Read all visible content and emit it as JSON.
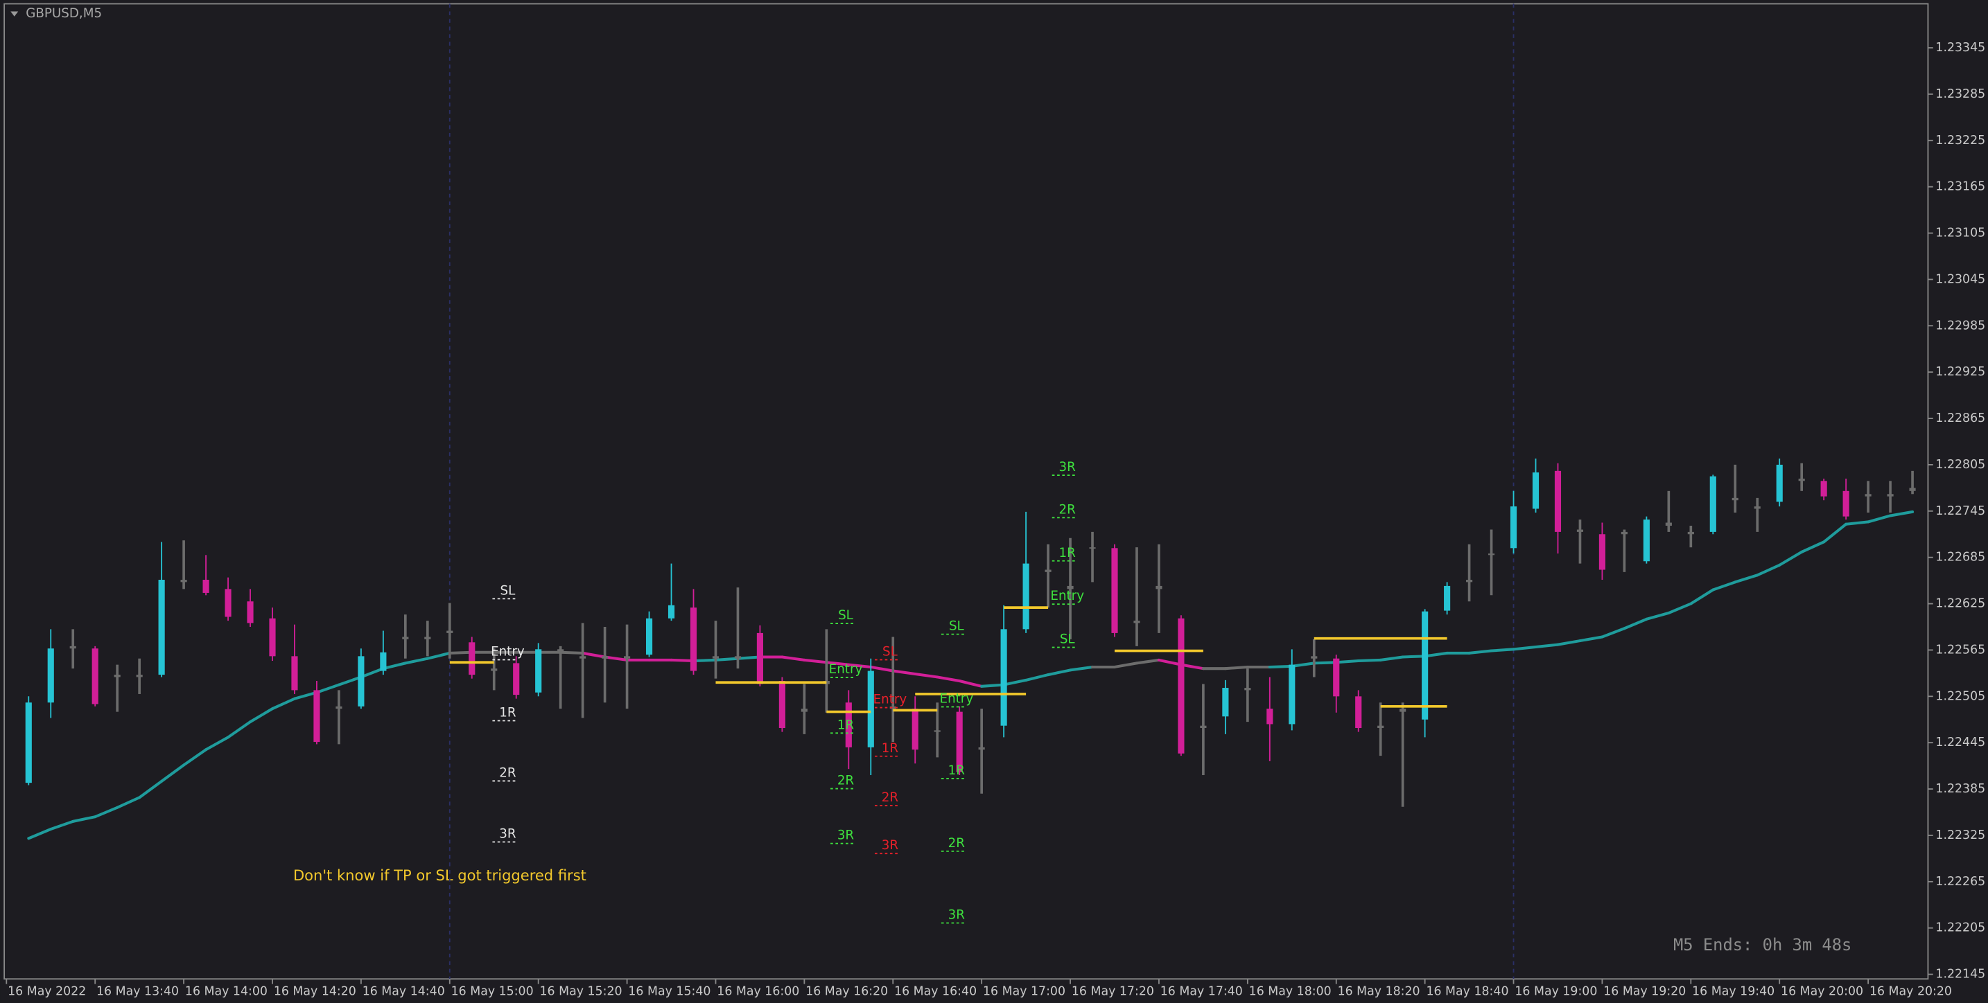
{
  "header": {
    "symbol": "GBPUSD,M5"
  },
  "chart_data": {
    "type": "candlestick",
    "open": [
      1.22393,
      1.22497,
      1.22567,
      1.22567,
      1.2253,
      1.2253,
      1.22533,
      1.22653,
      1.22656,
      1.22644,
      1.22628,
      1.22606,
      1.22557,
      1.22513,
      1.22489,
      1.22492,
      1.22538,
      1.22579,
      1.22579,
      1.22587,
      1.22575,
      1.22538,
      1.22548,
      1.2251,
      1.22562,
      1.22554,
      1.22554,
      1.22554,
      1.22559,
      1.22606,
      1.2262,
      1.22554,
      1.22554,
      1.22587,
      1.22525,
      1.22485,
      1.22521,
      1.22497,
      1.22439,
      1.22489,
      1.22489,
      1.22459,
      1.22485,
      1.22436,
      1.22467,
      1.22592,
      1.22669,
      1.22648,
      1.22698,
      1.22697,
      1.22603,
      1.22644,
      1.22606,
      1.22464,
      1.22479,
      1.22513,
      1.22489,
      1.22469,
      1.22554,
      1.22554,
      1.22505,
      1.22464,
      1.22485,
      1.22475,
      1.22616,
      1.22653,
      1.22688,
      1.22697,
      1.22748,
      1.22797,
      1.22721,
      1.22715,
      1.22715,
      1.2268,
      1.22726,
      1.22715,
      1.22718,
      1.22759,
      1.22751,
      1.22757,
      1.22784,
      1.22784,
      1.22771,
      1.22764,
      1.22764,
      1.22771
    ],
    "high": [
      1.22505,
      1.22592,
      1.22592,
      1.2257,
      1.22546,
      1.22554,
      1.22705,
      1.22707,
      1.22688,
      1.22659,
      1.22644,
      1.2262,
      1.22598,
      1.22525,
      1.22513,
      1.22567,
      1.2259,
      1.22611,
      1.22603,
      1.22626,
      1.22582,
      1.22567,
      1.22557,
      1.22574,
      1.2257,
      1.226,
      1.22595,
      1.22598,
      1.22615,
      1.22677,
      1.22644,
      1.22603,
      1.22646,
      1.22597,
      1.2253,
      1.22521,
      1.22592,
      1.22513,
      1.22554,
      1.22582,
      1.22505,
      1.22497,
      1.22492,
      1.22489,
      1.22623,
      1.22744,
      1.22702,
      1.2271,
      1.22718,
      1.22702,
      1.22698,
      1.22702,
      1.2261,
      1.22521,
      1.22526,
      1.22541,
      1.2253,
      1.22566,
      1.22579,
      1.22559,
      1.22513,
      1.22497,
      1.22497,
      1.22618,
      1.22653,
      1.22702,
      1.22721,
      1.22771,
      1.22813,
      1.22807,
      1.22734,
      1.2273,
      1.22721,
      1.22738,
      1.22771,
      1.22726,
      1.22792,
      1.22805,
      1.22762,
      1.22813,
      1.22807,
      1.22787,
      1.22787,
      1.22784,
      1.22784,
      1.22797
    ],
    "low": [
      1.2239,
      1.22477,
      1.22541,
      1.22492,
      1.22485,
      1.22508,
      1.2253,
      1.22644,
      1.22636,
      1.22603,
      1.22595,
      1.22551,
      1.22508,
      1.22443,
      1.22443,
      1.22489,
      1.22533,
      1.22554,
      1.22557,
      1.22554,
      1.22528,
      1.22513,
      1.22502,
      1.22505,
      1.22489,
      1.22477,
      1.22497,
      1.22489,
      1.22556,
      1.22603,
      1.22533,
      1.22528,
      1.22541,
      1.22518,
      1.22459,
      1.22456,
      1.22484,
      1.22411,
      1.22403,
      1.22446,
      1.22418,
      1.22426,
      1.22403,
      1.22379,
      1.22452,
      1.22587,
      1.2262,
      1.22579,
      1.22653,
      1.22582,
      1.2257,
      1.22587,
      1.22428,
      1.22403,
      1.22456,
      1.22472,
      1.22421,
      1.22461,
      1.2253,
      1.22484,
      1.22459,
      1.22428,
      1.22362,
      1.22452,
      1.22611,
      1.22628,
      1.22636,
      1.2269,
      1.22743,
      1.2269,
      1.22677,
      1.22656,
      1.22666,
      1.22677,
      1.22718,
      1.22698,
      1.22715,
      1.22743,
      1.22718,
      1.22751,
      1.22771,
      1.22759,
      1.22734,
      1.22743,
      1.22743,
      1.22767
    ],
    "close": [
      1.22497,
      1.22567,
      1.2257,
      1.22495,
      1.22533,
      1.22533,
      1.22656,
      1.22656,
      1.22639,
      1.22608,
      1.226,
      1.22557,
      1.22513,
      1.22446,
      1.22492,
      1.22557,
      1.22562,
      1.22582,
      1.22582,
      1.2259,
      1.22533,
      1.22541,
      1.22507,
      1.22566,
      1.22566,
      1.22557,
      1.22557,
      1.22557,
      1.22606,
      1.22623,
      1.22538,
      1.22557,
      1.22557,
      1.22521,
      1.22464,
      1.22489,
      1.22525,
      1.22439,
      1.22538,
      1.22492,
      1.22436,
      1.22461,
      1.22407,
      1.22439,
      1.22592,
      1.22677,
      1.22666,
      1.22644,
      1.22697,
      1.22587,
      1.226,
      1.22648,
      1.22431,
      1.22467,
      1.22516,
      1.22516,
      1.22469,
      1.22546,
      1.22557,
      1.22505,
      1.22464,
      1.22467,
      1.22489,
      1.22615,
      1.22648,
      1.22656,
      1.2269,
      1.22751,
      1.22795,
      1.22718,
      1.22718,
      1.22669,
      1.22718,
      1.22734,
      1.2273,
      1.22718,
      1.2279,
      1.22762,
      1.22748,
      1.22805,
      1.22787,
      1.22764,
      1.22738,
      1.22767,
      1.22767,
      1.22775
    ],
    "kind": [
      "up",
      "up",
      "neutral",
      "down",
      "neutral",
      "neutral",
      "up",
      "neutral",
      "down",
      "down",
      "down",
      "down",
      "down",
      "down",
      "neutral",
      "up",
      "up",
      "neutral",
      "neutral",
      "neutral",
      "down",
      "neutral",
      "down",
      "up",
      "neutral",
      "neutral",
      "neutral",
      "neutral",
      "up",
      "up",
      "down",
      "neutral",
      "neutral",
      "down",
      "down",
      "neutral",
      "neutral",
      "down",
      "up",
      "neutral",
      "down",
      "neutral",
      "down",
      "neutral",
      "up",
      "up",
      "neutral",
      "neutral",
      "neutral",
      "down",
      "neutral",
      "neutral",
      "down",
      "neutral",
      "up",
      "neutral",
      "down",
      "up",
      "neutral",
      "down",
      "down",
      "neutral",
      "neutral",
      "up",
      "up",
      "neutral",
      "neutral",
      "up",
      "up",
      "down",
      "neutral",
      "down",
      "neutral",
      "up",
      "neutral",
      "neutral",
      "up",
      "neutral",
      "neutral",
      "up",
      "neutral",
      "down",
      "down",
      "neutral",
      "neutral",
      "neutral"
    ],
    "colors": {
      "up": "#26c4d4",
      "down": "#d21f98",
      "neutral": "#6c6c6c"
    },
    "ma": {
      "values": [
        1.22321,
        1.22333,
        1.22343,
        1.22349,
        1.22361,
        1.22374,
        1.22395,
        1.22416,
        1.22436,
        1.22452,
        1.22472,
        1.22489,
        1.22502,
        1.2251,
        1.2252,
        1.2253,
        1.22541,
        1.22548,
        1.22554,
        1.22561,
        1.22562,
        1.22562,
        1.22562,
        1.22562,
        1.22562,
        1.22561,
        1.22556,
        1.22552,
        1.22552,
        1.22552,
        1.22551,
        1.22552,
        1.22554,
        1.22556,
        1.22556,
        1.22552,
        1.22549,
        1.22546,
        1.22543,
        1.22538,
        1.22534,
        1.2253,
        1.22525,
        1.22518,
        1.2252,
        1.22526,
        1.22533,
        1.22539,
        1.22543,
        1.22543,
        1.22548,
        1.22552,
        1.22546,
        1.22541,
        1.22541,
        1.22543,
        1.22543,
        1.22544,
        1.22548,
        1.22549,
        1.22551,
        1.22552,
        1.22556,
        1.22557,
        1.22561,
        1.22561,
        1.22564,
        1.22566,
        1.22569,
        1.22572,
        1.22577,
        1.22582,
        1.22593,
        1.22605,
        1.22613,
        1.22625,
        1.22643,
        1.22653,
        1.22662,
        1.22675,
        1.22692,
        1.22705,
        1.22728,
        1.22731,
        1.22739,
        1.22744
      ],
      "kind": [
        "up",
        "up",
        "up",
        "up",
        "up",
        "up",
        "up",
        "up",
        "up",
        "up",
        "up",
        "up",
        "up",
        "up",
        "up",
        "up",
        "up",
        "up",
        "up",
        "up",
        "neutral",
        "neutral",
        "neutral",
        "neutral",
        "neutral",
        "neutral",
        "down",
        "down",
        "down",
        "down",
        "down",
        "up",
        "up",
        "up",
        "down",
        "down",
        "down",
        "down",
        "down",
        "down",
        "down",
        "down",
        "down",
        "down",
        "up",
        "up",
        "up",
        "up",
        "up",
        "neutral",
        "neutral",
        "neutral",
        "down",
        "down",
        "neutral",
        "neutral",
        "neutral",
        "up",
        "up",
        "up",
        "up",
        "up",
        "up",
        "up",
        "up",
        "up",
        "up",
        "up",
        "up",
        "up",
        "up",
        "up",
        "up",
        "up",
        "up",
        "up",
        "up",
        "up",
        "up",
        "up",
        "up",
        "up",
        "up",
        "up",
        "up",
        "up"
      ]
    },
    "xlim": [
      -1.1,
      85.7
    ],
    "ylim": [
      1.22139,
      1.23402
    ],
    "yticks": [
      1.23345,
      1.23285,
      1.23225,
      1.23165,
      1.23105,
      1.23045,
      1.22985,
      1.22925,
      1.22865,
      1.22805,
      1.22745,
      1.22685,
      1.22625,
      1.22565,
      1.22505,
      1.22445,
      1.22385,
      1.22325,
      1.22265,
      1.22205,
      1.22145
    ],
    "xticks": [
      {
        "value": -1,
        "label": "16 May 2022"
      },
      {
        "value": 3,
        "label": "16 May 13:40"
      },
      {
        "value": 7,
        "label": "16 May 14:00"
      },
      {
        "value": 11,
        "label": "16 May 14:20"
      },
      {
        "value": 15,
        "label": "16 May 14:40"
      },
      {
        "value": 19,
        "label": "16 May 15:00"
      },
      {
        "value": 23,
        "label": "16 May 15:20"
      },
      {
        "value": 27,
        "label": "16 May 15:40"
      },
      {
        "value": 31,
        "label": "16 May 16:00"
      },
      {
        "value": 35,
        "label": "16 May 16:20"
      },
      {
        "value": 39,
        "label": "16 May 16:40"
      },
      {
        "value": 43,
        "label": "16 May 17:00"
      },
      {
        "value": 47,
        "label": "16 May 17:20"
      },
      {
        "value": 51,
        "label": "16 May 17:40"
      },
      {
        "value": 55,
        "label": "16 May 18:00"
      },
      {
        "value": 59,
        "label": "16 May 18:20"
      },
      {
        "value": 63,
        "label": "16 May 18:40"
      },
      {
        "value": 67,
        "label": "16 May 19:00"
      },
      {
        "value": 71,
        "label": "16 May 19:20"
      },
      {
        "value": 75,
        "label": "16 May 19:40"
      },
      {
        "value": 79,
        "label": "16 May 20:00"
      },
      {
        "value": 83,
        "label": "16 May 20:20"
      }
    ],
    "separators": [
      19,
      67
    ],
    "entry_line_color": "#f2c82c",
    "entry_lines": [
      {
        "price": 1.22549,
        "from": 19,
        "to": 21
      },
      {
        "price": 1.22523,
        "from": 31,
        "to": 36
      },
      {
        "price": 1.22485,
        "from": 36,
        "to": 38
      },
      {
        "price": 1.22487,
        "from": 39,
        "to": 41
      },
      {
        "price": 1.22508,
        "from": 40,
        "to": 45
      },
      {
        "price": 1.2262,
        "from": 44,
        "to": 46
      },
      {
        "price": 1.22564,
        "from": 49,
        "to": 53
      },
      {
        "price": 1.2258,
        "from": 58,
        "to": 64
      },
      {
        "price": 1.22492,
        "from": 61,
        "to": 64
      }
    ],
    "levels": [
      {
        "text": "SL",
        "x": 21.5,
        "price": 1.22638,
        "color": "#e6e6e6"
      },
      {
        "text": "Entry",
        "x": 21.5,
        "price": 1.22559,
        "color": "#e6e6e6"
      },
      {
        "text": "1R",
        "x": 21.5,
        "price": 1.2248,
        "color": "#e6e6e6"
      },
      {
        "text": "2R",
        "x": 21.5,
        "price": 1.22402,
        "color": "#e6e6e6"
      },
      {
        "text": "3R",
        "x": 21.5,
        "price": 1.22323,
        "color": "#e6e6e6"
      },
      {
        "text": "SL",
        "x": 36.75,
        "price": 1.22606,
        "color": "#3ee03e"
      },
      {
        "text": "Entry",
        "x": 36.75,
        "price": 1.22536,
        "color": "#3ee03e"
      },
      {
        "text": "1R",
        "x": 36.75,
        "price": 1.22464,
        "color": "#3ee03e"
      },
      {
        "text": "2R",
        "x": 36.75,
        "price": 1.22392,
        "color": "#3ee03e"
      },
      {
        "text": "3R",
        "x": 36.75,
        "price": 1.22321,
        "color": "#3ee03e"
      },
      {
        "text": "SL",
        "x": 38.75,
        "price": 1.22559,
        "color": "#e8202a"
      },
      {
        "text": "Entry",
        "x": 38.75,
        "price": 1.22497,
        "color": "#e8202a"
      },
      {
        "text": "1R",
        "x": 38.75,
        "price": 1.22434,
        "color": "#e8202a"
      },
      {
        "text": "2R",
        "x": 38.75,
        "price": 1.2237,
        "color": "#e8202a"
      },
      {
        "text": "3R",
        "x": 38.75,
        "price": 1.22308,
        "color": "#e8202a"
      },
      {
        "text": "SL",
        "x": 41.75,
        "price": 1.22592,
        "color": "#3ee03e"
      },
      {
        "text": "Entry",
        "x": 41.75,
        "price": 1.22498,
        "color": "#3ee03e"
      },
      {
        "text": "1R",
        "x": 41.75,
        "price": 1.22405,
        "color": "#3ee03e"
      },
      {
        "text": "2R",
        "x": 41.75,
        "price": 1.22311,
        "color": "#3ee03e"
      },
      {
        "text": "3R",
        "x": 41.75,
        "price": 1.22218,
        "color": "#3ee03e"
      },
      {
        "text": "3R",
        "x": 46.75,
        "price": 1.22798,
        "color": "#3ee03e"
      },
      {
        "text": "2R",
        "x": 46.75,
        "price": 1.22743,
        "color": "#3ee03e"
      },
      {
        "text": "1R",
        "x": 46.75,
        "price": 1.22687,
        "color": "#3ee03e"
      },
      {
        "text": "Entry",
        "x": 46.75,
        "price": 1.22631,
        "color": "#3ee03e"
      },
      {
        "text": "SL",
        "x": 46.75,
        "price": 1.22575,
        "color": "#3ee03e"
      }
    ],
    "note": "Don't know if TP or SL got triggered first",
    "timer": "M5 Ends: 0h 3m 48s"
  }
}
